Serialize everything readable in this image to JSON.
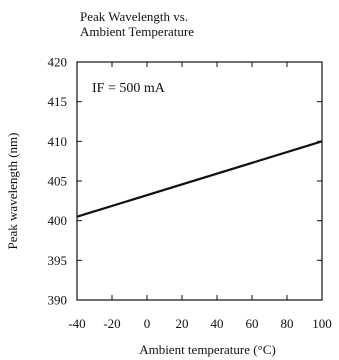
{
  "chart_data": {
    "type": "line",
    "title_lines": [
      "Peak Wavelength vs.",
      "Ambient Temperature"
    ],
    "xlabel": "Ambient temperature (°C)",
    "ylabel": "Peak wavelength (nm)",
    "annotation": "IF = 500 mA",
    "xlim": [
      -40,
      100
    ],
    "ylim": [
      390,
      420
    ],
    "x_ticks": [
      -40,
      -20,
      0,
      20,
      40,
      60,
      80,
      100
    ],
    "y_ticks": [
      390,
      395,
      400,
      405,
      410,
      415,
      420
    ],
    "grid": false,
    "series": [
      {
        "x": [
          -40,
          100
        ],
        "y": [
          400.5,
          410
        ]
      }
    ],
    "line_color": "#111111"
  }
}
